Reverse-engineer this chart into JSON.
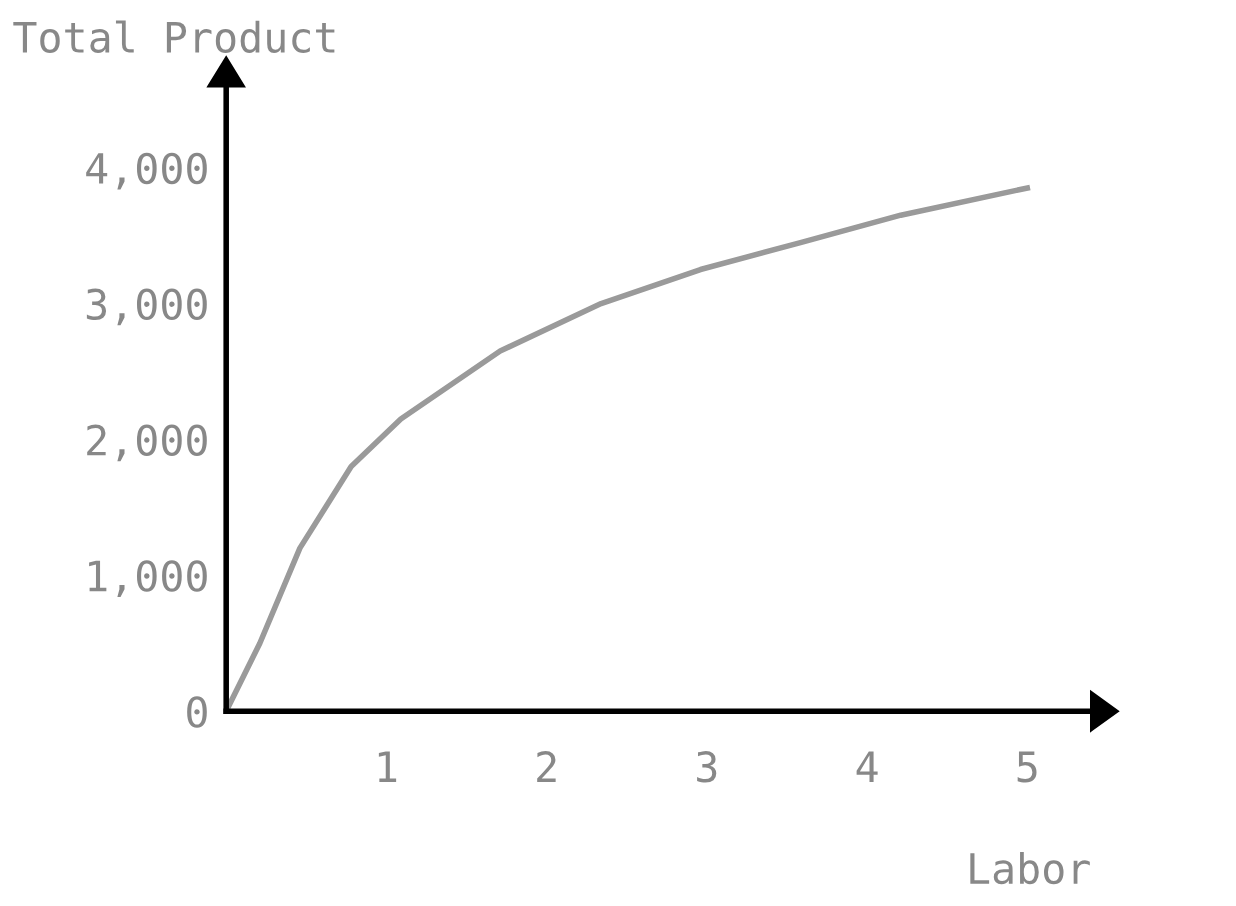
{
  "chart_data": {
    "type": "line",
    "xlabel": "Labor",
    "ylabel": "Total Product",
    "x": [
      0,
      0.21,
      0.46,
      0.78,
      1.09,
      1.71,
      2.34,
      2.96,
      3.59,
      4.21,
      5
    ],
    "series": [
      {
        "color": "#9a9a9a",
        "values": [
          0,
          500,
          1200,
          1800,
          2150,
          2650,
          3000,
          3250,
          3450,
          3650,
          3850
        ]
      }
    ],
    "xlim": [
      0,
      5.4
    ],
    "ylim": [
      0,
      4600
    ],
    "xticks": [
      1,
      2,
      3,
      4,
      5
    ],
    "yticks": [
      0,
      {
        "value": 1000,
        "label": "1,000"
      },
      {
        "value": 2000,
        "label": "2,000"
      },
      {
        "value": 3000,
        "label": "3,000"
      },
      {
        "value": 4000,
        "label": "4,000"
      }
    ],
    "grid": false,
    "legend": false,
    "marker": "none",
    "line_style": "solid"
  }
}
